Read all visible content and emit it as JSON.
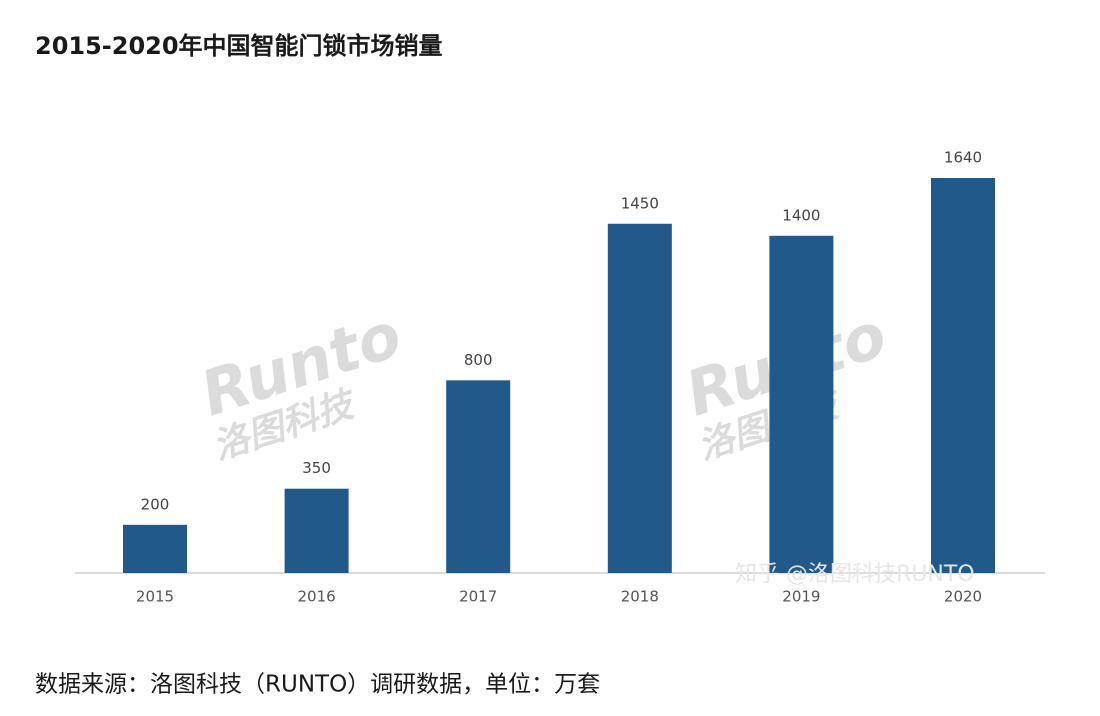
{
  "chart_data": {
    "type": "bar",
    "title": "2015-2020年中国智能门锁市场销量",
    "categories": [
      "2015",
      "2016",
      "2017",
      "2018",
      "2019",
      "2020"
    ],
    "values": [
      200,
      350,
      800,
      1450,
      1400,
      1640
    ],
    "color": "#215a8a",
    "note": "数据来源：洛图科技（RUNTO）调研数据，单位：万套",
    "watermarks": [
      "Runto",
      "洛图科技",
      "知乎 @洛图科技RUNTO"
    ]
  }
}
